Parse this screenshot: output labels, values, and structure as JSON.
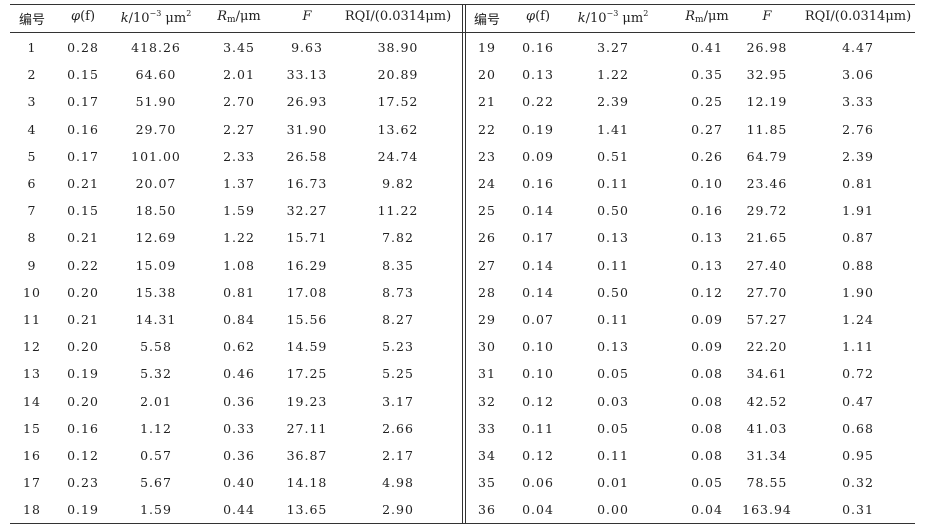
{
  "table": {
    "headers": {
      "id": "编号",
      "phi": "φ",
      "phi_arg": "(f)",
      "k_prefix": "k",
      "k_unit_a": "/10",
      "k_exp": "−3",
      "k_unit_b": " μm",
      "k_sq": "2",
      "rm_main": "R",
      "rm_sub": "m",
      "rm_unit": "/μm",
      "f": "F",
      "rqi": "RQI/(0.0314μm)"
    },
    "left_rows": [
      [
        "1",
        "0.28",
        "418.26",
        "3.45",
        "9.63",
        "38.90"
      ],
      [
        "2",
        "0.15",
        "64.60",
        "2.01",
        "33.13",
        "20.89"
      ],
      [
        "3",
        "0.17",
        "51.90",
        "2.70",
        "26.93",
        "17.52"
      ],
      [
        "4",
        "0.16",
        "29.70",
        "2.27",
        "31.90",
        "13.62"
      ],
      [
        "5",
        "0.17",
        "101.00",
        "2.33",
        "26.58",
        "24.74"
      ],
      [
        "6",
        "0.21",
        "20.07",
        "1.37",
        "16.73",
        "9.82"
      ],
      [
        "7",
        "0.15",
        "18.50",
        "1.59",
        "32.27",
        "11.22"
      ],
      [
        "8",
        "0.21",
        "12.69",
        "1.22",
        "15.71",
        "7.82"
      ],
      [
        "9",
        "0.22",
        "15.09",
        "1.08",
        "16.29",
        "8.35"
      ],
      [
        "10",
        "0.20",
        "15.38",
        "0.81",
        "17.08",
        "8.73"
      ],
      [
        "11",
        "0.21",
        "14.31",
        "0.84",
        "15.56",
        "8.27"
      ],
      [
        "12",
        "0.20",
        "5.58",
        "0.62",
        "14.59",
        "5.23"
      ],
      [
        "13",
        "0.19",
        "5.32",
        "0.46",
        "17.25",
        "5.25"
      ],
      [
        "14",
        "0.20",
        "2.01",
        "0.36",
        "19.23",
        "3.17"
      ],
      [
        "15",
        "0.16",
        "1.12",
        "0.33",
        "27.11",
        "2.66"
      ],
      [
        "16",
        "0.12",
        "0.57",
        "0.36",
        "36.87",
        "2.17"
      ],
      [
        "17",
        "0.23",
        "5.67",
        "0.40",
        "14.18",
        "4.98"
      ],
      [
        "18",
        "0.19",
        "1.59",
        "0.44",
        "13.65",
        "2.90"
      ]
    ],
    "right_rows": [
      [
        "19",
        "0.16",
        "3.27",
        "0.41",
        "26.98",
        "4.47"
      ],
      [
        "20",
        "0.13",
        "1.22",
        "0.35",
        "32.95",
        "3.06"
      ],
      [
        "21",
        "0.22",
        "2.39",
        "0.25",
        "12.19",
        "3.33"
      ],
      [
        "22",
        "0.19",
        "1.41",
        "0.27",
        "11.85",
        "2.76"
      ],
      [
        "23",
        "0.09",
        "0.51",
        "0.26",
        "64.79",
        "2.39"
      ],
      [
        "24",
        "0.16",
        "0.11",
        "0.10",
        "23.46",
        "0.81"
      ],
      [
        "25",
        "0.14",
        "0.50",
        "0.16",
        "29.72",
        "1.91"
      ],
      [
        "26",
        "0.17",
        "0.13",
        "0.13",
        "21.65",
        "0.87"
      ],
      [
        "27",
        "0.14",
        "0.11",
        "0.13",
        "27.40",
        "0.88"
      ],
      [
        "28",
        "0.14",
        "0.50",
        "0.12",
        "27.70",
        "1.90"
      ],
      [
        "29",
        "0.07",
        "0.11",
        "0.09",
        "57.27",
        "1.24"
      ],
      [
        "30",
        "0.10",
        "0.13",
        "0.09",
        "22.20",
        "1.11"
      ],
      [
        "31",
        "0.10",
        "0.05",
        "0.08",
        "34.61",
        "0.72"
      ],
      [
        "32",
        "0.12",
        "0.03",
        "0.08",
        "42.52",
        "0.47"
      ],
      [
        "33",
        "0.11",
        "0.05",
        "0.08",
        "41.03",
        "0.68"
      ],
      [
        "34",
        "0.12",
        "0.11",
        "0.08",
        "31.34",
        "0.95"
      ],
      [
        "35",
        "0.06",
        "0.01",
        "0.05",
        "78.55",
        "0.32"
      ],
      [
        "36",
        "0.04",
        "0.00",
        "0.04",
        "163.94",
        "0.31"
      ]
    ]
  }
}
